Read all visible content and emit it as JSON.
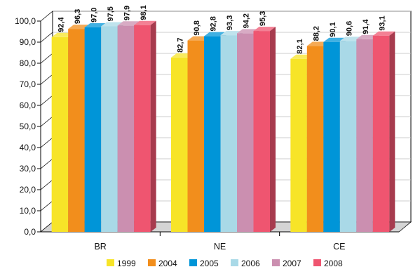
{
  "chart_data": {
    "type": "bar",
    "categories": [
      "BR",
      "NE",
      "CE"
    ],
    "series": [
      {
        "name": "1999",
        "values": [
          92.4,
          82.7,
          82.1
        ],
        "color": "#f7e428"
      },
      {
        "name": "2004",
        "values": [
          96.3,
          90.8,
          88.2
        ],
        "color": "#f28e1c"
      },
      {
        "name": "2005",
        "values": [
          97.0,
          92.8,
          90.1
        ],
        "color": "#0095d8"
      },
      {
        "name": "2006",
        "values": [
          97.5,
          93.3,
          90.6
        ],
        "color": "#a9d9e7"
      },
      {
        "name": "2007",
        "values": [
          97.9,
          94.2,
          91.4
        ],
        "color": "#cb8fb0"
      },
      {
        "name": "2008",
        "values": [
          98.1,
          95.3,
          93.1
        ],
        "color": "#ef5570"
      }
    ],
    "data_labels": [
      [
        "92,4",
        "82,7",
        "82,1"
      ],
      [
        "96,3",
        "90,8",
        "88,2"
      ],
      [
        "97,0",
        "92,8",
        "90,1"
      ],
      [
        "97,5",
        "93,3",
        "90,6"
      ],
      [
        "97,9",
        "94,2",
        "91,4"
      ],
      [
        "98,1",
        "95,3",
        "93,1"
      ]
    ],
    "y_ticks": [
      "0,0",
      "10,0",
      "20,0",
      "30,0",
      "40,0",
      "50,0",
      "60,0",
      "70,0",
      "80,0",
      "90,0",
      "100,0"
    ],
    "ylim": [
      0,
      100
    ],
    "grid": true,
    "legend_position": "bottom",
    "title": "",
    "xlabel": "",
    "ylabel": ""
  }
}
